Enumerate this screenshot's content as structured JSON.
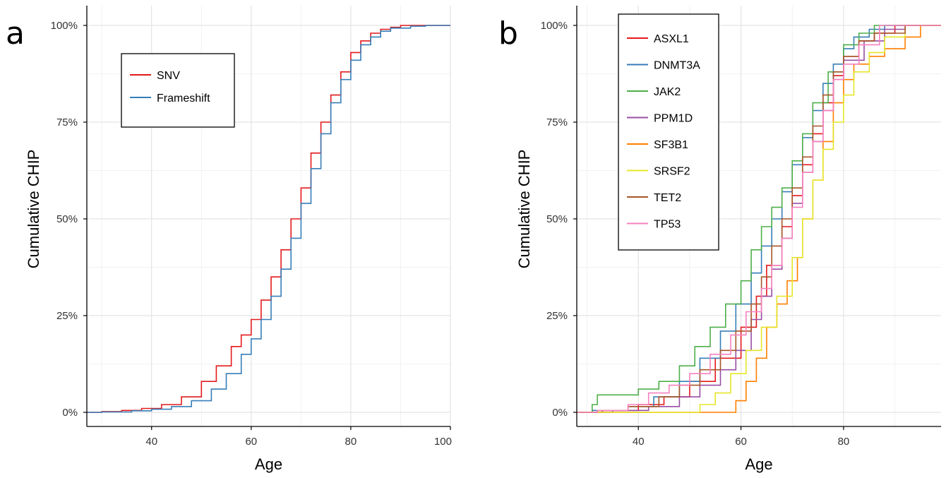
{
  "chart_data": [
    {
      "type": "line",
      "panel_letter": "a",
      "xlabel": "Age",
      "ylabel": "Cumulative CHIP",
      "xlim": [
        27,
        100
      ],
      "ylim": [
        0,
        1
      ],
      "x_ticks": [
        40,
        60,
        80,
        100
      ],
      "x_tick_labels": [
        "40",
        "60",
        "80",
        "100"
      ],
      "y_ticks": [
        0,
        0.25,
        0.5,
        0.75,
        1
      ],
      "y_tick_labels": [
        "0%",
        "25%",
        "50%",
        "75%",
        "100%"
      ],
      "grid": true,
      "legend_position": "top-left",
      "series": [
        {
          "name": "SNV",
          "color": "#e41a1c",
          "points": [
            [
              30,
              0.002
            ],
            [
              34,
              0.005
            ],
            [
              38,
              0.01
            ],
            [
              42,
              0.02
            ],
            [
              46,
              0.04
            ],
            [
              50,
              0.08
            ],
            [
              53,
              0.12
            ],
            [
              56,
              0.17
            ],
            [
              58,
              0.2
            ],
            [
              60,
              0.24
            ],
            [
              62,
              0.29
            ],
            [
              64,
              0.35
            ],
            [
              66,
              0.42
            ],
            [
              68,
              0.5
            ],
            [
              70,
              0.58
            ],
            [
              72,
              0.67
            ],
            [
              74,
              0.75
            ],
            [
              76,
              0.82
            ],
            [
              78,
              0.88
            ],
            [
              80,
              0.93
            ],
            [
              82,
              0.96
            ],
            [
              84,
              0.98
            ],
            [
              86,
              0.99
            ],
            [
              88,
              0.995
            ],
            [
              90,
              1.0
            ]
          ]
        },
        {
          "name": "Frameshift",
          "color": "#377eb8",
          "points": [
            [
              30,
              0.001
            ],
            [
              36,
              0.004
            ],
            [
              40,
              0.008
            ],
            [
              44,
              0.015
            ],
            [
              48,
              0.03
            ],
            [
              52,
              0.06
            ],
            [
              55,
              0.1
            ],
            [
              58,
              0.15
            ],
            [
              60,
              0.19
            ],
            [
              62,
              0.24
            ],
            [
              64,
              0.3
            ],
            [
              66,
              0.37
            ],
            [
              68,
              0.45
            ],
            [
              70,
              0.54
            ],
            [
              72,
              0.63
            ],
            [
              74,
              0.72
            ],
            [
              76,
              0.8
            ],
            [
              78,
              0.86
            ],
            [
              80,
              0.91
            ],
            [
              82,
              0.95
            ],
            [
              84,
              0.97
            ],
            [
              86,
              0.985
            ],
            [
              88,
              0.993
            ],
            [
              92,
              0.998
            ],
            [
              95,
              1.0
            ]
          ]
        }
      ]
    },
    {
      "type": "line",
      "panel_letter": "b",
      "xlabel": "Age",
      "ylabel": "Cumulative CHIP",
      "xlim": [
        28,
        99
      ],
      "ylim": [
        0,
        1
      ],
      "x_ticks": [
        40,
        60,
        80
      ],
      "x_tick_labels": [
        "40",
        "60",
        "80"
      ],
      "y_ticks": [
        0,
        0.25,
        0.5,
        0.75,
        1
      ],
      "y_tick_labels": [
        "0%",
        "25%",
        "50%",
        "75%",
        "100%"
      ],
      "grid": true,
      "legend_position": "top-left",
      "series": [
        {
          "name": "ASXL1",
          "color": "#e41a1c",
          "points": [
            [
              33,
              0.005
            ],
            [
              40,
              0.02
            ],
            [
              45,
              0.04
            ],
            [
              50,
              0.08
            ],
            [
              55,
              0.14
            ],
            [
              60,
              0.22
            ],
            [
              63,
              0.3
            ],
            [
              65,
              0.38
            ],
            [
              68,
              0.48
            ],
            [
              70,
              0.56
            ],
            [
              72,
              0.64
            ],
            [
              74,
              0.72
            ],
            [
              76,
              0.8
            ],
            [
              78,
              0.87
            ],
            [
              80,
              0.92
            ],
            [
              83,
              0.96
            ],
            [
              86,
              0.98
            ],
            [
              90,
              1.0
            ]
          ]
        },
        {
          "name": "DNMT3A",
          "color": "#377eb8",
          "points": [
            [
              31,
              0.005
            ],
            [
              38,
              0.015
            ],
            [
              43,
              0.04
            ],
            [
              48,
              0.08
            ],
            [
              52,
              0.14
            ],
            [
              56,
              0.21
            ],
            [
              59,
              0.28
            ],
            [
              62,
              0.36
            ],
            [
              64,
              0.43
            ],
            [
              66,
              0.5
            ],
            [
              68,
              0.57
            ],
            [
              70,
              0.64
            ],
            [
              72,
              0.71
            ],
            [
              74,
              0.78
            ],
            [
              76,
              0.85
            ],
            [
              78,
              0.9
            ],
            [
              80,
              0.94
            ],
            [
              82,
              0.97
            ],
            [
              85,
              0.99
            ],
            [
              88,
              1.0
            ]
          ]
        },
        {
          "name": "JAK2",
          "color": "#4daf4a",
          "points": [
            [
              30,
              0.0
            ],
            [
              31,
              0.02
            ],
            [
              32,
              0.045
            ],
            [
              40,
              0.06
            ],
            [
              44,
              0.08
            ],
            [
              48,
              0.12
            ],
            [
              51,
              0.17
            ],
            [
              54,
              0.22
            ],
            [
              57,
              0.28
            ],
            [
              60,
              0.34
            ],
            [
              62,
              0.42
            ],
            [
              64,
              0.48
            ],
            [
              66,
              0.53
            ],
            [
              68,
              0.58
            ],
            [
              70,
              0.65
            ],
            [
              72,
              0.72
            ],
            [
              74,
              0.8
            ],
            [
              77,
              0.88
            ],
            [
              80,
              0.95
            ],
            [
              83,
              0.98
            ],
            [
              86,
              1.0
            ]
          ]
        },
        {
          "name": "PPM1D",
          "color": "#984ea3",
          "points": [
            [
              35,
              0.005
            ],
            [
              42,
              0.015
            ],
            [
              48,
              0.04
            ],
            [
              52,
              0.07
            ],
            [
              56,
              0.11
            ],
            [
              59,
              0.16
            ],
            [
              62,
              0.24
            ],
            [
              64,
              0.3
            ],
            [
              66,
              0.37
            ],
            [
              68,
              0.45
            ],
            [
              70,
              0.54
            ],
            [
              72,
              0.62
            ],
            [
              74,
              0.7
            ],
            [
              76,
              0.78
            ],
            [
              78,
              0.86
            ],
            [
              80,
              0.91
            ],
            [
              84,
              0.96
            ],
            [
              88,
              0.99
            ],
            [
              92,
              1.0
            ]
          ]
        },
        {
          "name": "SF3B1",
          "color": "#ff7f00",
          "points": [
            [
              28,
              0.0
            ],
            [
              58,
              0.0
            ],
            [
              59,
              0.03
            ],
            [
              61,
              0.08
            ],
            [
              63,
              0.14
            ],
            [
              65,
              0.22
            ],
            [
              67,
              0.28
            ],
            [
              69,
              0.34
            ],
            [
              71,
              0.4
            ],
            [
              72,
              0.5
            ],
            [
              74,
              0.6
            ],
            [
              76,
              0.7
            ],
            [
              78,
              0.8
            ],
            [
              80,
              0.86
            ],
            [
              82,
              0.9
            ],
            [
              85,
              0.92
            ],
            [
              88,
              0.94
            ],
            [
              92,
              0.97
            ],
            [
              95,
              1.0
            ]
          ]
        },
        {
          "name": "SRSF2",
          "color": "#e6e62a",
          "points": [
            [
              28,
              0.0
            ],
            [
              51,
              0.0
            ],
            [
              52,
              0.02
            ],
            [
              55,
              0.05
            ],
            [
              58,
              0.1
            ],
            [
              61,
              0.16
            ],
            [
              64,
              0.22
            ],
            [
              67,
              0.3
            ],
            [
              70,
              0.4
            ],
            [
              72,
              0.5
            ],
            [
              74,
              0.6
            ],
            [
              76,
              0.68
            ],
            [
              78,
              0.75
            ],
            [
              80,
              0.82
            ],
            [
              82,
              0.88
            ],
            [
              85,
              0.93
            ],
            [
              88,
              0.97
            ],
            [
              92,
              1.0
            ]
          ]
        },
        {
          "name": "TET2",
          "color": "#a65628",
          "points": [
            [
              32,
              0.005
            ],
            [
              38,
              0.015
            ],
            [
              44,
              0.04
            ],
            [
              48,
              0.07
            ],
            [
              52,
              0.11
            ],
            [
              56,
              0.16
            ],
            [
              59,
              0.21
            ],
            [
              62,
              0.28
            ],
            [
              64,
              0.35
            ],
            [
              66,
              0.43
            ],
            [
              68,
              0.5
            ],
            [
              70,
              0.58
            ],
            [
              72,
              0.66
            ],
            [
              74,
              0.74
            ],
            [
              76,
              0.82
            ],
            [
              78,
              0.88
            ],
            [
              80,
              0.92
            ],
            [
              83,
              0.96
            ],
            [
              86,
              0.98
            ],
            [
              92,
              1.0
            ]
          ]
        },
        {
          "name": "TP53",
          "color": "#f781bf",
          "points": [
            [
              28,
              0.0
            ],
            [
              32,
              0.005
            ],
            [
              38,
              0.02
            ],
            [
              42,
              0.05
            ],
            [
              46,
              0.07
            ],
            [
              50,
              0.1
            ],
            [
              54,
              0.15
            ],
            [
              58,
              0.2
            ],
            [
              61,
              0.26
            ],
            [
              64,
              0.32
            ],
            [
              66,
              0.38
            ],
            [
              68,
              0.45
            ],
            [
              70,
              0.53
            ],
            [
              72,
              0.62
            ],
            [
              74,
              0.7
            ],
            [
              76,
              0.78
            ],
            [
              78,
              0.86
            ],
            [
              80,
              0.9
            ],
            [
              83,
              0.95
            ],
            [
              87,
              1.0
            ]
          ]
        }
      ]
    }
  ]
}
